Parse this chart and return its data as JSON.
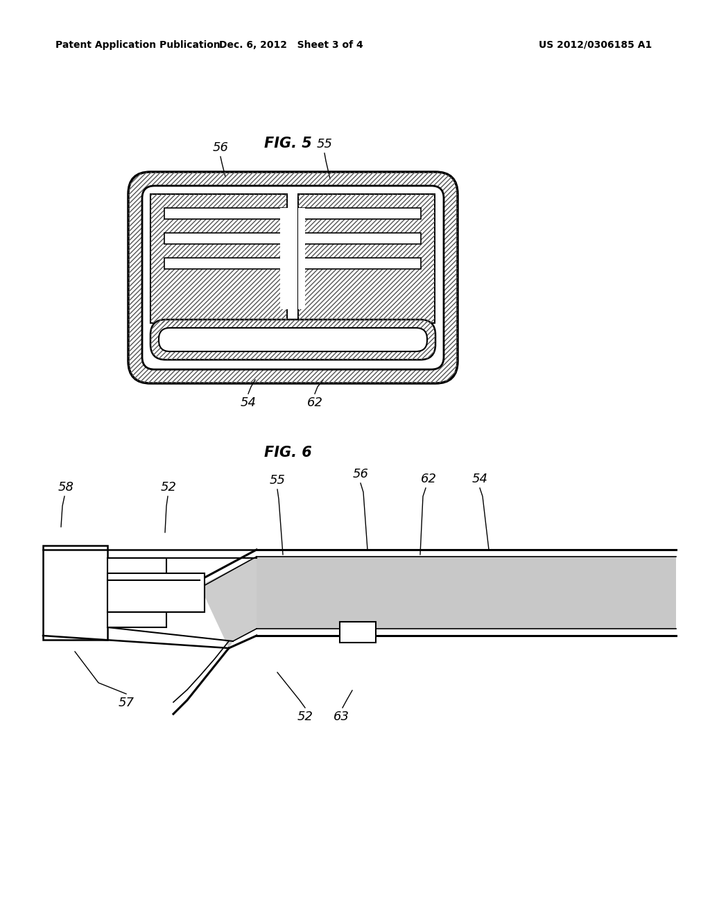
{
  "background_color": "#ffffff",
  "header_left": "Patent Application Publication",
  "header_center": "Dec. 6, 2012   Sheet 3 of 4",
  "header_right": "US 2012/0306185 A1",
  "fig5_label": "FIG. 5",
  "fig6_label": "FIG. 6",
  "label_font_size": 13,
  "header_font_size": 10,
  "fig_label_font_size": 15,
  "hatch_color": "#555555",
  "line_color": "#000000",
  "foam_color": "#c8c8c8"
}
